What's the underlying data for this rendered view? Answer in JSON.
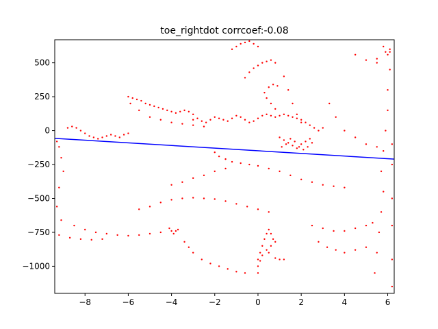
{
  "chart_data": {
    "type": "scatter",
    "title": "toe_rightdot corrcoef:-0.08",
    "xlabel": "",
    "ylabel": "",
    "xlim": [
      -9.4,
      6.3
    ],
    "ylim": [
      -1200,
      670
    ],
    "xticks": [
      -8,
      -6,
      -4,
      -2,
      0,
      2,
      4,
      6
    ],
    "yticks": [
      -1000,
      -750,
      -500,
      -250,
      0,
      250,
      500
    ],
    "xtick_labels": [
      "−8",
      "−6",
      "−4",
      "−2",
      "0",
      "2",
      "4",
      "6"
    ],
    "ytick_labels": [
      "−1000",
      "−750",
      "−500",
      "−250",
      "0",
      "250",
      "500"
    ],
    "grid": false,
    "series": [
      {
        "kind": "scatter",
        "color": "#ff0000",
        "points": [
          [
            -9.3,
            -80
          ],
          [
            -9.2,
            -120
          ],
          [
            -9.1,
            -200
          ],
          [
            -9.0,
            -300
          ],
          [
            -9.2,
            -420
          ],
          [
            -9.3,
            -560
          ],
          [
            -9.1,
            -660
          ],
          [
            -9.2,
            -770
          ],
          [
            -8.8,
            20
          ],
          [
            -8.6,
            30
          ],
          [
            -8.4,
            20
          ],
          [
            -8.2,
            0
          ],
          [
            -8.0,
            -20
          ],
          [
            -7.8,
            -40
          ],
          [
            -7.6,
            -50
          ],
          [
            -7.4,
            -60
          ],
          [
            -7.2,
            -50
          ],
          [
            -7.0,
            -40
          ],
          [
            -6.8,
            -30
          ],
          [
            -6.6,
            -40
          ],
          [
            -6.4,
            -50
          ],
          [
            -6.2,
            -30
          ],
          [
            -6.0,
            -20
          ],
          [
            -6.0,
            250
          ],
          [
            -5.8,
            240
          ],
          [
            -5.6,
            230
          ],
          [
            -5.4,
            220
          ],
          [
            -5.2,
            200
          ],
          [
            -5.0,
            190
          ],
          [
            -4.8,
            180
          ],
          [
            -4.6,
            170
          ],
          [
            -4.4,
            160
          ],
          [
            -4.2,
            150
          ],
          [
            -4.0,
            140
          ],
          [
            -3.8,
            130
          ],
          [
            -3.6,
            140
          ],
          [
            -3.4,
            150
          ],
          [
            -3.2,
            140
          ],
          [
            -3.0,
            120
          ],
          [
            -5.9,
            200
          ],
          [
            -5.5,
            150
          ],
          [
            -5.0,
            100
          ],
          [
            -4.5,
            80
          ],
          [
            -4.0,
            60
          ],
          [
            -3.5,
            50
          ],
          [
            -3.0,
            40
          ],
          [
            -2.5,
            30
          ],
          [
            -3.0,
            80
          ],
          [
            -2.8,
            90
          ],
          [
            -2.6,
            70
          ],
          [
            -2.4,
            60
          ],
          [
            -2.2,
            80
          ],
          [
            -2.0,
            100
          ],
          [
            -1.8,
            90
          ],
          [
            -1.6,
            80
          ],
          [
            -1.4,
            70
          ],
          [
            -1.2,
            90
          ],
          [
            -1.0,
            110
          ],
          [
            -0.8,
            100
          ],
          [
            -0.6,
            80
          ],
          [
            -0.4,
            60
          ],
          [
            -0.2,
            70
          ],
          [
            0.0,
            90
          ],
          [
            0.2,
            110
          ],
          [
            0.4,
            120
          ],
          [
            0.6,
            110
          ],
          [
            0.8,
            100
          ],
          [
            1.0,
            110
          ],
          [
            1.2,
            120
          ],
          [
            1.4,
            110
          ],
          [
            1.6,
            100
          ],
          [
            1.8,
            90
          ],
          [
            2.0,
            80
          ],
          [
            2.2,
            60
          ],
          [
            2.4,
            40
          ],
          [
            2.6,
            20
          ],
          [
            2.8,
            0
          ],
          [
            3.0,
            20
          ],
          [
            1.0,
            -50
          ],
          [
            1.2,
            -70
          ],
          [
            1.4,
            -90
          ],
          [
            1.6,
            -110
          ],
          [
            1.8,
            -130
          ],
          [
            2.0,
            -100
          ],
          [
            2.2,
            -80
          ],
          [
            2.4,
            -60
          ],
          [
            1.5,
            -60
          ],
          [
            1.7,
            -80
          ],
          [
            1.9,
            -120
          ],
          [
            2.1,
            -140
          ],
          [
            2.3,
            -120
          ],
          [
            2.5,
            -90
          ],
          [
            1.3,
            -100
          ],
          [
            1.1,
            -120
          ],
          [
            0.8,
            160
          ],
          [
            0.6,
            200
          ],
          [
            0.4,
            240
          ],
          [
            0.3,
            280
          ],
          [
            0.5,
            320
          ],
          [
            0.7,
            340
          ],
          [
            0.9,
            330
          ],
          [
            -0.6,
            390
          ],
          [
            -0.4,
            430
          ],
          [
            -0.2,
            460
          ],
          [
            0.0,
            480
          ],
          [
            0.2,
            500
          ],
          [
            0.4,
            510
          ],
          [
            0.6,
            520
          ],
          [
            0.8,
            500
          ],
          [
            -1.2,
            600
          ],
          [
            -1.0,
            620
          ],
          [
            -0.8,
            640
          ],
          [
            -0.6,
            650
          ],
          [
            -0.4,
            660
          ],
          [
            -0.2,
            640
          ],
          [
            0.0,
            620
          ],
          [
            1.2,
            400
          ],
          [
            1.4,
            300
          ],
          [
            1.6,
            200
          ],
          [
            1.8,
            120
          ],
          [
            2.0,
            60
          ],
          [
            -2.0,
            -160
          ],
          [
            -1.8,
            -190
          ],
          [
            -1.5,
            -210
          ],
          [
            -1.2,
            -230
          ],
          [
            -0.8,
            -240
          ],
          [
            -0.4,
            -250
          ],
          [
            0.0,
            -260
          ],
          [
            0.5,
            -280
          ],
          [
            1.0,
            -300
          ],
          [
            1.5,
            -330
          ],
          [
            2.0,
            -360
          ],
          [
            2.5,
            -380
          ],
          [
            3.0,
            -400
          ],
          [
            3.5,
            -410
          ],
          [
            4.0,
            -420
          ],
          [
            -4.0,
            -400
          ],
          [
            -3.5,
            -380
          ],
          [
            -3.0,
            -350
          ],
          [
            -2.5,
            -330
          ],
          [
            -2.0,
            -300
          ],
          [
            -1.5,
            -280
          ],
          [
            -5.5,
            -580
          ],
          [
            -5.0,
            -560
          ],
          [
            -4.5,
            -530
          ],
          [
            -4.0,
            -510
          ],
          [
            -3.5,
            -500
          ],
          [
            -3.0,
            -495
          ],
          [
            -2.5,
            -500
          ],
          [
            -2.0,
            -505
          ],
          [
            -1.5,
            -520
          ],
          [
            -1.0,
            -540
          ],
          [
            -0.5,
            -560
          ],
          [
            0.0,
            -580
          ],
          [
            0.5,
            -600
          ],
          [
            -8.5,
            -700
          ],
          [
            -8.0,
            -730
          ],
          [
            -7.5,
            -750
          ],
          [
            -7.0,
            -760
          ],
          [
            -6.5,
            -770
          ],
          [
            -6.0,
            -775
          ],
          [
            -5.5,
            -770
          ],
          [
            -5.0,
            -760
          ],
          [
            -4.5,
            -750
          ],
          [
            -8.7,
            -790
          ],
          [
            -8.2,
            -800
          ],
          [
            -7.7,
            -805
          ],
          [
            -7.2,
            -800
          ],
          [
            -4.1,
            -720
          ],
          [
            -4.0,
            -740
          ],
          [
            -3.9,
            -760
          ],
          [
            -3.8,
            -740
          ],
          [
            -3.7,
            -730
          ],
          [
            -3.4,
            -820
          ],
          [
            -3.2,
            -860
          ],
          [
            -3.0,
            -900
          ],
          [
            -2.6,
            -950
          ],
          [
            -2.2,
            -980
          ],
          [
            -1.8,
            -1000
          ],
          [
            -1.4,
            -1020
          ],
          [
            -1.0,
            -1040
          ],
          [
            -0.6,
            -1050
          ],
          [
            0.0,
            -1050
          ],
          [
            0.0,
            -1000
          ],
          [
            0.0,
            -950
          ],
          [
            0.1,
            -900
          ],
          [
            0.2,
            -850
          ],
          [
            0.3,
            -800
          ],
          [
            0.4,
            -760
          ],
          [
            0.5,
            -730
          ],
          [
            0.6,
            -760
          ],
          [
            0.7,
            -800
          ],
          [
            0.8,
            -820
          ],
          [
            0.6,
            -850
          ],
          [
            0.4,
            -880
          ],
          [
            0.2,
            -920
          ],
          [
            0.1,
            -960
          ],
          [
            0.5,
            -900
          ],
          [
            0.8,
            -940
          ],
          [
            1.0,
            -950
          ],
          [
            1.2,
            -950
          ],
          [
            2.5,
            -700
          ],
          [
            3.0,
            -720
          ],
          [
            3.5,
            -740
          ],
          [
            4.0,
            -740
          ],
          [
            4.5,
            -720
          ],
          [
            5.0,
            -700
          ],
          [
            5.3,
            -680
          ],
          [
            2.8,
            -820
          ],
          [
            3.2,
            -860
          ],
          [
            3.6,
            -880
          ],
          [
            4.0,
            -900
          ],
          [
            4.5,
            -880
          ],
          [
            5.0,
            -860
          ],
          [
            5.7,
            -300
          ],
          [
            5.8,
            -150
          ],
          [
            5.9,
            0
          ],
          [
            6.0,
            150
          ],
          [
            6.0,
            300
          ],
          [
            6.1,
            450
          ],
          [
            6.1,
            580
          ],
          [
            5.8,
            -450
          ],
          [
            5.7,
            -600
          ],
          [
            5.6,
            -750
          ],
          [
            5.5,
            -900
          ],
          [
            5.4,
            -1050
          ],
          [
            6.2,
            -1150
          ],
          [
            6.2,
            -950
          ],
          [
            6.2,
            -700
          ],
          [
            6.2,
            -500
          ],
          [
            6.2,
            -250
          ],
          [
            6.2,
            -100
          ],
          [
            5.9,
            580
          ],
          [
            6.0,
            560
          ],
          [
            6.1,
            600
          ],
          [
            5.8,
            620
          ],
          [
            4.5,
            560
          ],
          [
            5.0,
            520
          ],
          [
            5.5,
            500
          ],
          [
            5.5,
            530
          ],
          [
            3.3,
            200
          ],
          [
            3.6,
            100
          ],
          [
            4.0,
            0
          ],
          [
            4.5,
            -50
          ],
          [
            5.0,
            -100
          ],
          [
            5.5,
            -120
          ]
        ]
      },
      {
        "kind": "line",
        "color": "#0000ff",
        "points": [
          [
            -9.4,
            -57
          ],
          [
            6.3,
            -210
          ]
        ]
      }
    ]
  }
}
